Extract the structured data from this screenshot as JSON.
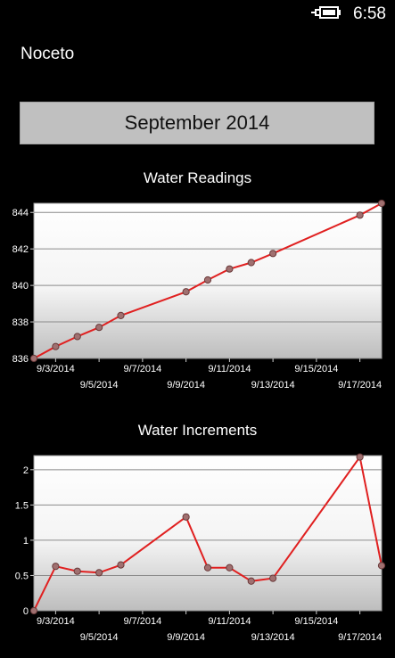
{
  "status_bar": {
    "time": "6:58",
    "battery_icon": "battery-charging-icon"
  },
  "app": {
    "title": "Noceto"
  },
  "month_selector": {
    "label": "September 2014"
  },
  "colors": {
    "background": "#000000",
    "button": "#c0c0c0",
    "line": "#e02020",
    "marker": "#a07070"
  },
  "chart_data": [
    {
      "type": "line",
      "title": "Water Readings",
      "x": [
        "9/2/2014",
        "9/3/2014",
        "9/4/2014",
        "9/5/2014",
        "9/6/2014",
        "9/9/2014",
        "9/10/2014",
        "9/11/2014",
        "9/12/2014",
        "9/13/2014",
        "9/17/2014",
        "9/18/2014"
      ],
      "values": [
        836.0,
        836.65,
        837.2,
        837.7,
        838.35,
        839.65,
        840.3,
        840.9,
        841.25,
        841.75,
        843.85,
        844.5
      ],
      "xlabel": "",
      "ylabel": "",
      "xlim": [
        "9/2/2014",
        "9/18/2014"
      ],
      "ylim": [
        836,
        844.5
      ],
      "yticks": [
        836,
        838,
        840,
        842,
        844
      ],
      "xticks": [
        "9/3/2014",
        "9/5/2014",
        "9/7/2014",
        "9/9/2014",
        "9/11/2014",
        "9/13/2014",
        "9/15/2014",
        "9/17/2014"
      ],
      "grid": true
    },
    {
      "type": "line",
      "title": "Water Increments",
      "x": [
        "9/2/2014",
        "9/3/2014",
        "9/4/2014",
        "9/5/2014",
        "9/6/2014",
        "9/9/2014",
        "9/10/2014",
        "9/11/2014",
        "9/12/2014",
        "9/13/2014",
        "9/17/2014",
        "9/18/2014"
      ],
      "values": [
        0.0,
        0.63,
        0.56,
        0.54,
        0.65,
        1.33,
        0.61,
        0.61,
        0.42,
        0.46,
        2.18,
        0.64
      ],
      "xlabel": "",
      "ylabel": "",
      "xlim": [
        "9/2/2014",
        "9/18/2014"
      ],
      "ylim": [
        0,
        2.2
      ],
      "yticks": [
        0,
        0.5,
        1,
        1.5,
        2
      ],
      "xticks": [
        "9/3/2014",
        "9/5/2014",
        "9/7/2014",
        "9/9/2014",
        "9/11/2014",
        "9/13/2014",
        "9/15/2014",
        "9/17/2014"
      ],
      "grid": true
    }
  ]
}
